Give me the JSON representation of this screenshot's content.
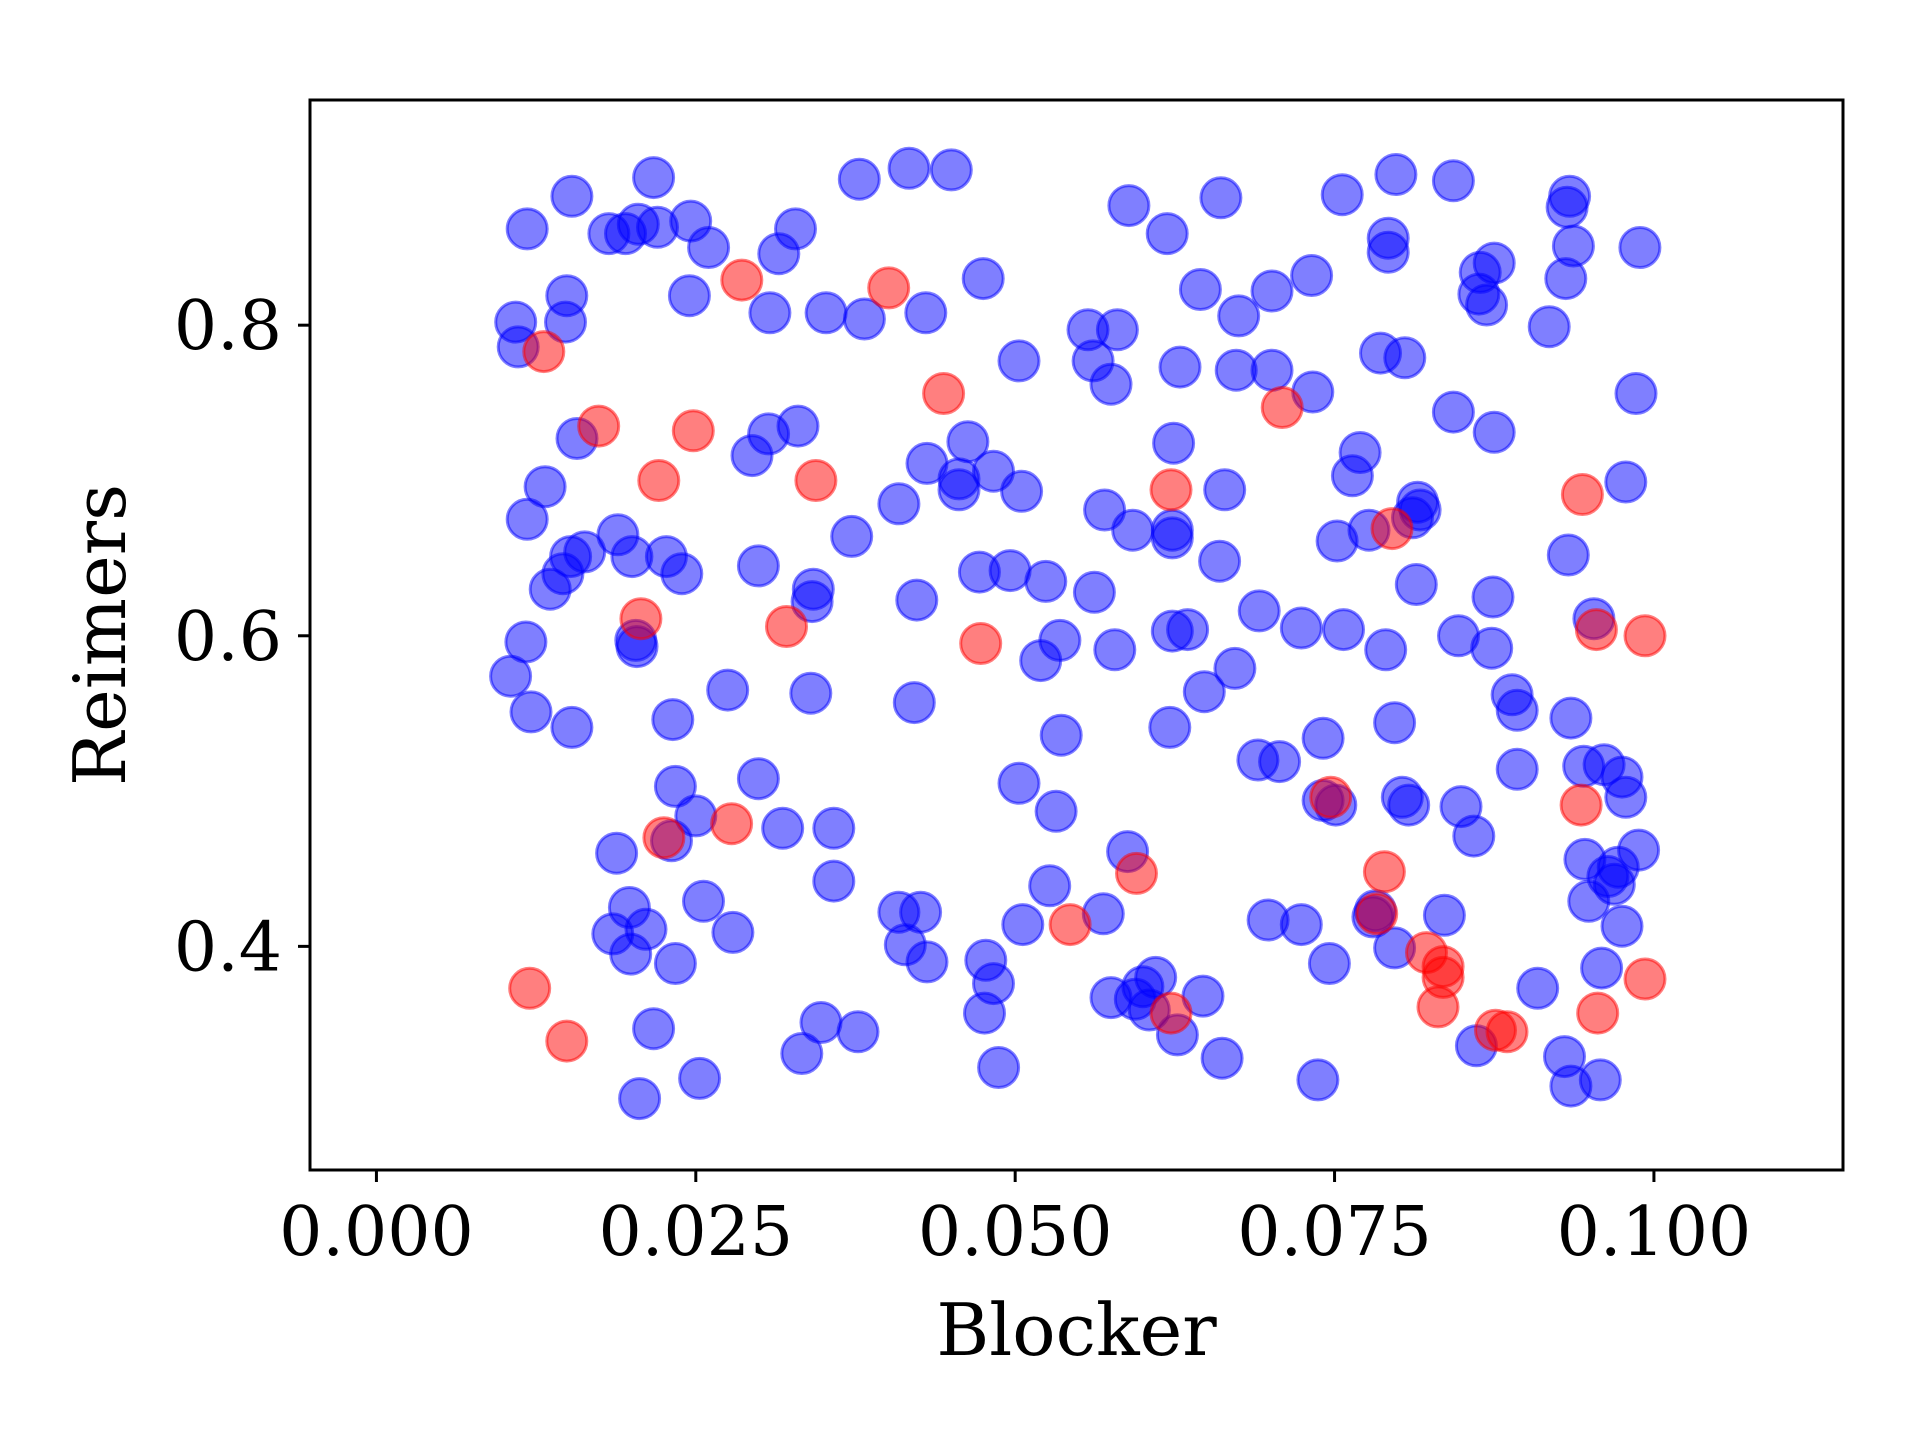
{
  "chart_data": {
    "type": "scatter",
    "title": "",
    "xlabel": "Blocker",
    "ylabel": "Reimers",
    "xlim": [
      -0.0052,
      0.1148
    ],
    "ylim": [
      0.256,
      0.945
    ],
    "xticks": [
      0.0,
      0.025,
      0.05,
      0.075,
      0.1
    ],
    "xtick_labels": [
      "0.000",
      "0.025",
      "0.050",
      "0.075",
      "0.100"
    ],
    "yticks": [
      0.4,
      0.6,
      0.8
    ],
    "ytick_labels": [
      "0.4",
      "0.6",
      "0.8"
    ],
    "grid": false,
    "legend": "none",
    "series": [
      {
        "color": "#0000ff",
        "opacity": 0.5,
        "points": [
          [
            0.0217,
            0.895
          ],
          [
            0.0417,
            0.901
          ],
          [
            0.045,
            0.9
          ],
          [
            0.0378,
            0.894
          ],
          [
            0.0798,
            0.897
          ],
          [
            0.0843,
            0.893
          ],
          [
            0.0153,
            0.883
          ],
          [
            0.0934,
            0.883
          ],
          [
            0.0932,
            0.876
          ],
          [
            0.0589,
            0.877
          ],
          [
            0.0661,
            0.882
          ],
          [
            0.0756,
            0.884
          ],
          [
            0.0118,
            0.862
          ],
          [
            0.0182,
            0.859
          ],
          [
            0.0195,
            0.859
          ],
          [
            0.0205,
            0.865
          ],
          [
            0.022,
            0.863
          ],
          [
            0.0246,
            0.867
          ],
          [
            0.0328,
            0.862
          ],
          [
            0.026,
            0.85
          ],
          [
            0.0315,
            0.846
          ],
          [
            0.0619,
            0.859
          ],
          [
            0.0792,
            0.856
          ],
          [
            0.0937,
            0.851
          ],
          [
            0.0989,
            0.85
          ],
          [
            0.0792,
            0.847
          ],
          [
            0.0875,
            0.84
          ],
          [
            0.0864,
            0.834
          ],
          [
            0.0931,
            0.83
          ],
          [
            0.0475,
            0.83
          ],
          [
            0.0732,
            0.832
          ],
          [
            0.0149,
            0.819
          ],
          [
            0.0245,
            0.819
          ],
          [
            0.0645,
            0.823
          ],
          [
            0.0701,
            0.822
          ],
          [
            0.0863,
            0.82
          ],
          [
            0.0869,
            0.813
          ],
          [
            0.0308,
            0.808
          ],
          [
            0.0352,
            0.808
          ],
          [
            0.0382,
            0.804
          ],
          [
            0.043,
            0.808
          ],
          [
            0.0675,
            0.806
          ],
          [
            0.0109,
            0.802
          ],
          [
            0.0148,
            0.802
          ],
          [
            0.0918,
            0.799
          ],
          [
            0.0557,
            0.797
          ],
          [
            0.058,
            0.797
          ],
          [
            0.0111,
            0.786
          ],
          [
            0.0503,
            0.777
          ],
          [
            0.0561,
            0.777
          ],
          [
            0.0629,
            0.773
          ],
          [
            0.0673,
            0.771
          ],
          [
            0.0701,
            0.771
          ],
          [
            0.0786,
            0.782
          ],
          [
            0.0805,
            0.779
          ],
          [
            0.0575,
            0.762
          ],
          [
            0.0733,
            0.757
          ],
          [
            0.0986,
            0.756
          ],
          [
            0.0843,
            0.744
          ],
          [
            0.0875,
            0.731
          ],
          [
            0.0157,
            0.727
          ],
          [
            0.0307,
            0.73
          ],
          [
            0.033,
            0.735
          ],
          [
            0.0294,
            0.716
          ],
          [
            0.0463,
            0.725
          ],
          [
            0.077,
            0.718
          ],
          [
            0.0624,
            0.724
          ],
          [
            0.0431,
            0.711
          ],
          [
            0.0456,
            0.701
          ],
          [
            0.0483,
            0.706
          ],
          [
            0.0764,
            0.703
          ],
          [
            0.0132,
            0.696
          ],
          [
            0.0456,
            0.694
          ],
          [
            0.0505,
            0.693
          ],
          [
            0.0664,
            0.694
          ],
          [
            0.0978,
            0.699
          ],
          [
            0.0409,
            0.685
          ],
          [
            0.057,
            0.681
          ],
          [
            0.0815,
            0.686
          ],
          [
            0.0817,
            0.681
          ],
          [
            0.0811,
            0.676
          ],
          [
            0.0118,
            0.675
          ],
          [
            0.0592,
            0.668
          ],
          [
            0.0623,
            0.668
          ],
          [
            0.0623,
            0.663
          ],
          [
            0.0777,
            0.668
          ],
          [
            0.0752,
            0.661
          ],
          [
            0.0372,
            0.664
          ],
          [
            0.0189,
            0.665
          ],
          [
            0.0933,
            0.652
          ],
          [
            0.0152,
            0.651
          ],
          [
            0.0163,
            0.654
          ],
          [
            0.02,
            0.651
          ],
          [
            0.0227,
            0.651
          ],
          [
            0.0146,
            0.64
          ],
          [
            0.0239,
            0.64
          ],
          [
            0.0299,
            0.645
          ],
          [
            0.066,
            0.648
          ],
          [
            0.0472,
            0.641
          ],
          [
            0.0496,
            0.642
          ],
          [
            0.0524,
            0.635
          ],
          [
            0.0136,
            0.63
          ],
          [
            0.0342,
            0.63
          ],
          [
            0.0562,
            0.628
          ],
          [
            0.0423,
            0.623
          ],
          [
            0.0341,
            0.622
          ],
          [
            0.0814,
            0.633
          ],
          [
            0.0874,
            0.625
          ],
          [
            0.0953,
            0.611
          ],
          [
            0.0691,
            0.616
          ],
          [
            0.0117,
            0.596
          ],
          [
            0.0203,
            0.597
          ],
          [
            0.0204,
            0.593
          ],
          [
            0.0535,
            0.597
          ],
          [
            0.052,
            0.584
          ],
          [
            0.0578,
            0.591
          ],
          [
            0.0623,
            0.603
          ],
          [
            0.0635,
            0.604
          ],
          [
            0.0724,
            0.605
          ],
          [
            0.0757,
            0.604
          ],
          [
            0.079,
            0.591
          ],
          [
            0.0847,
            0.6
          ],
          [
            0.0873,
            0.592
          ],
          [
            0.0105,
            0.574
          ],
          [
            0.0275,
            0.565
          ],
          [
            0.034,
            0.563
          ],
          [
            0.0421,
            0.557
          ],
          [
            0.0648,
            0.564
          ],
          [
            0.0672,
            0.579
          ],
          [
            0.0889,
            0.562
          ],
          [
            0.0893,
            0.552
          ],
          [
            0.0121,
            0.551
          ],
          [
            0.0153,
            0.541
          ],
          [
            0.0232,
            0.546
          ],
          [
            0.0536,
            0.536
          ],
          [
            0.0621,
            0.541
          ],
          [
            0.0797,
            0.544
          ],
          [
            0.0935,
            0.547
          ],
          [
            0.069,
            0.52
          ],
          [
            0.0707,
            0.519
          ],
          [
            0.0741,
            0.534
          ],
          [
            0.0893,
            0.514
          ],
          [
            0.0945,
            0.516
          ],
          [
            0.0961,
            0.517
          ],
          [
            0.0975,
            0.509
          ],
          [
            0.0978,
            0.496
          ],
          [
            0.0234,
            0.503
          ],
          [
            0.0299,
            0.508
          ],
          [
            0.0503,
            0.505
          ],
          [
            0.0741,
            0.494
          ],
          [
            0.0751,
            0.491
          ],
          [
            0.0803,
            0.496
          ],
          [
            0.0808,
            0.491
          ],
          [
            0.0849,
            0.49
          ],
          [
            0.0532,
            0.487
          ],
          [
            0.025,
            0.484
          ],
          [
            0.0318,
            0.476
          ],
          [
            0.0358,
            0.476
          ],
          [
            0.0859,
            0.471
          ],
          [
            0.0231,
            0.468
          ],
          [
            0.0188,
            0.46
          ],
          [
            0.0588,
            0.461
          ],
          [
            0.0946,
            0.456
          ],
          [
            0.0972,
            0.451
          ],
          [
            0.0988,
            0.462
          ],
          [
            0.0964,
            0.445
          ],
          [
            0.0969,
            0.44
          ],
          [
            0.0358,
            0.442
          ],
          [
            0.0527,
            0.439
          ],
          [
            0.0949,
            0.429
          ],
          [
            0.0198,
            0.425
          ],
          [
            0.0256,
            0.429
          ],
          [
            0.0409,
            0.422
          ],
          [
            0.0426,
            0.422
          ],
          [
            0.0569,
            0.421
          ],
          [
            0.0698,
            0.417
          ],
          [
            0.0724,
            0.414
          ],
          [
            0.0506,
            0.414
          ],
          [
            0.0782,
            0.423
          ],
          [
            0.078,
            0.419
          ],
          [
            0.0836,
            0.42
          ],
          [
            0.0975,
            0.413
          ],
          [
            0.0185,
            0.408
          ],
          [
            0.0211,
            0.411
          ],
          [
            0.0279,
            0.409
          ],
          [
            0.0414,
            0.401
          ],
          [
            0.0199,
            0.395
          ],
          [
            0.0431,
            0.39
          ],
          [
            0.0477,
            0.391
          ],
          [
            0.0797,
            0.399
          ],
          [
            0.0234,
            0.389
          ],
          [
            0.0746,
            0.389
          ],
          [
            0.061,
            0.38
          ],
          [
            0.0959,
            0.386
          ],
          [
            0.0483,
            0.376
          ],
          [
            0.06,
            0.374
          ],
          [
            0.0594,
            0.366
          ],
          [
            0.0575,
            0.367
          ],
          [
            0.0647,
            0.368
          ],
          [
            0.0909,
            0.373
          ],
          [
            0.0476,
            0.357
          ],
          [
            0.0605,
            0.359
          ],
          [
            0.0348,
            0.351
          ],
          [
            0.0377,
            0.345
          ],
          [
            0.0217,
            0.347
          ],
          [
            0.0627,
            0.343
          ],
          [
            0.0861,
            0.336
          ],
          [
            0.0333,
            0.331
          ],
          [
            0.0662,
            0.328
          ],
          [
            0.093,
            0.329
          ],
          [
            0.0487,
            0.322
          ],
          [
            0.0253,
            0.315
          ],
          [
            0.0737,
            0.314
          ],
          [
            0.0958,
            0.314
          ],
          [
            0.0935,
            0.31
          ],
          [
            0.0206,
            0.302
          ]
        ]
      },
      {
        "color": "#ff0000",
        "opacity": 0.5,
        "points": [
          [
            0.0286,
            0.829
          ],
          [
            0.0401,
            0.824
          ],
          [
            0.0131,
            0.783
          ],
          [
            0.0444,
            0.756
          ],
          [
            0.0709,
            0.747
          ],
          [
            0.0174,
            0.735
          ],
          [
            0.0248,
            0.732
          ],
          [
            0.0221,
            0.7
          ],
          [
            0.0344,
            0.7
          ],
          [
            0.0622,
            0.694
          ],
          [
            0.0944,
            0.691
          ],
          [
            0.0795,
            0.669
          ],
          [
            0.0207,
            0.611
          ],
          [
            0.0321,
            0.606
          ],
          [
            0.0473,
            0.595
          ],
          [
            0.0955,
            0.604
          ],
          [
            0.0993,
            0.6
          ],
          [
            0.0747,
            0.496
          ],
          [
            0.0943,
            0.491
          ],
          [
            0.0278,
            0.479
          ],
          [
            0.0225,
            0.47
          ],
          [
            0.0789,
            0.448
          ],
          [
            0.0595,
            0.447
          ],
          [
            0.0783,
            0.421
          ],
          [
            0.0543,
            0.414
          ],
          [
            0.0822,
            0.396
          ],
          [
            0.0835,
            0.387
          ],
          [
            0.0835,
            0.38
          ],
          [
            0.012,
            0.373
          ],
          [
            0.0993,
            0.379
          ],
          [
            0.0831,
            0.361
          ],
          [
            0.0956,
            0.357
          ],
          [
            0.0622,
            0.357
          ],
          [
            0.0876,
            0.346
          ],
          [
            0.0885,
            0.345
          ],
          [
            0.0149,
            0.339
          ]
        ]
      }
    ]
  }
}
